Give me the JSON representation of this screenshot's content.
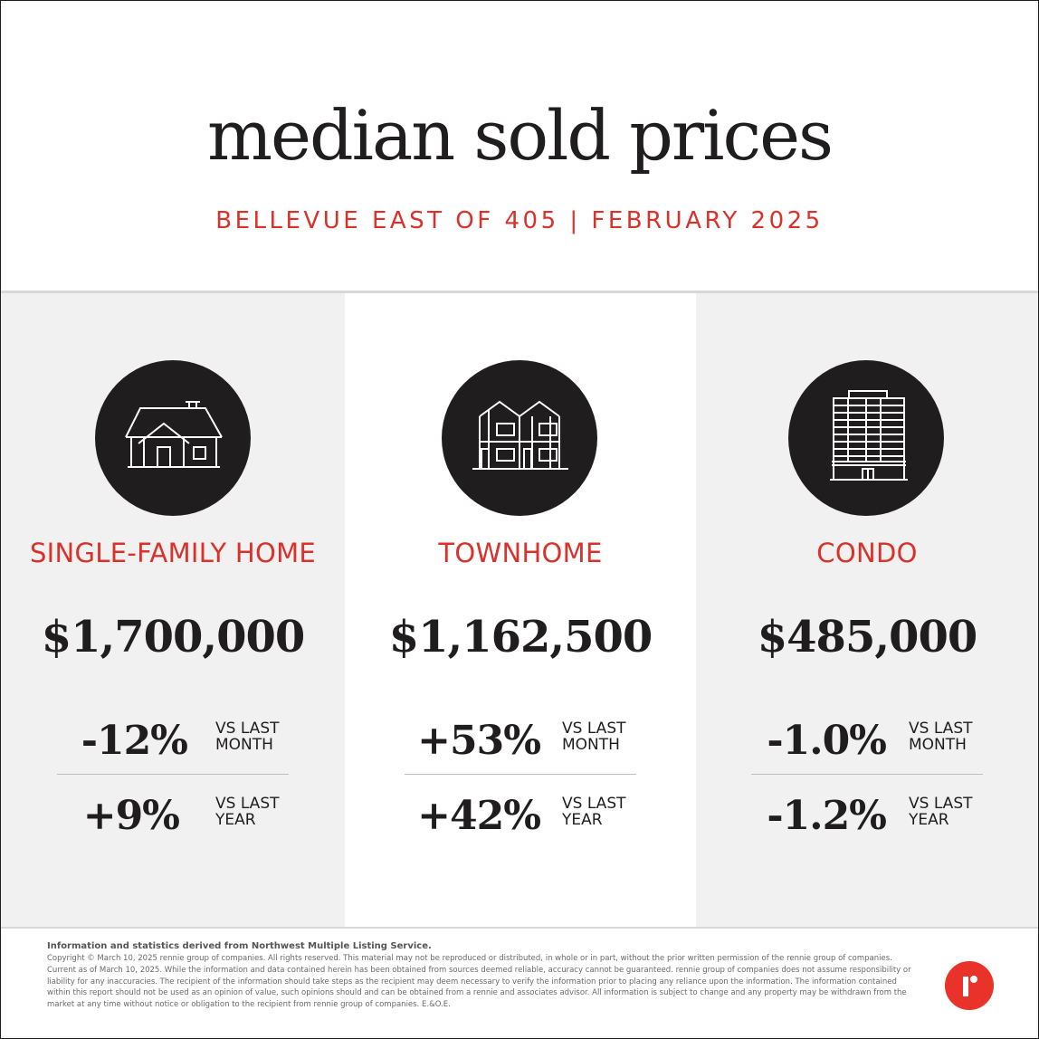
{
  "header": {
    "title": "median sold prices",
    "subtitle": "BELLEVUE EAST OF 405 | FEBRUARY 2025"
  },
  "colors": {
    "accent": "#d8322a",
    "dark": "#1f1d1e",
    "panel_grey": "#f1f1f1"
  },
  "categories": [
    {
      "icon": "house-icon",
      "label": "SINGLE-FAMILY HOME",
      "price": "$1,700,000",
      "month_change": "-12%",
      "month_label_1": "VS LAST",
      "month_label_2": "MONTH",
      "year_change": "+9%",
      "year_label_1": "VS LAST",
      "year_label_2": "YEAR"
    },
    {
      "icon": "townhome-icon",
      "label": "TOWNHOME",
      "price": "$1,162,500",
      "month_change": "+53%",
      "month_label_1": "VS LAST",
      "month_label_2": "MONTH",
      "year_change": "+42%",
      "year_label_1": "VS LAST",
      "year_label_2": "YEAR"
    },
    {
      "icon": "condo-building-icon",
      "label": "CONDO",
      "price": "$485,000",
      "month_change": "-1.0%",
      "month_label_1": "VS LAST",
      "month_label_2": "MONTH",
      "year_change": "-1.2%",
      "year_label_1": "VS LAST",
      "year_label_2": "YEAR"
    }
  ],
  "footer": {
    "source": "Information and statistics derived from Northwest Multiple Listing Service.",
    "disclaimer": "Copyright © March 10, 2025 rennie group of companies. All rights reserved. This material may not be reproduced or distributed, in whole or in part, without the prior written permission of the rennie group of companies. Current as of March 10, 2025. While the information and data contained herein has been obtained from sources deemed reliable, accuracy cannot be guaranteed. rennie group of companies does not assume responsibility or liability for any inaccuracies. The recipient of the information should take steps as the recipient may deem necessary to verify the information prior to placing any reliance upon the information. The information contained within this report should not be used as an opinion of value, such opinions should and can be obtained from a rennie and associates advisor. All information is subject to change and any property may be withdrawn from the market at any time without notice or obligation to the recipient from rennie group of companies. E.&O.E.",
    "logo": "rennie-logo"
  }
}
